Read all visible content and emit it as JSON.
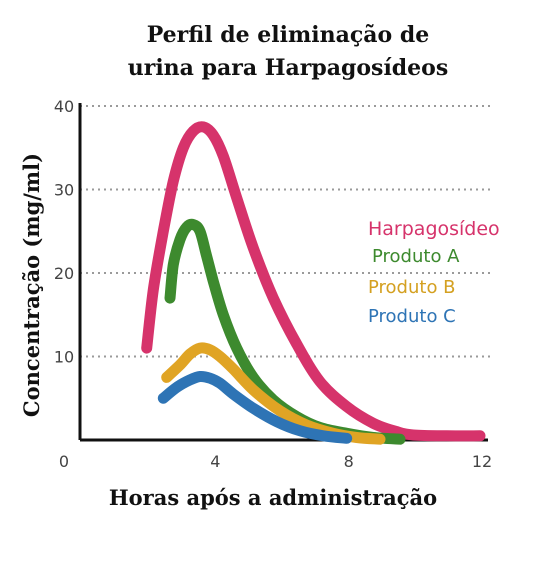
{
  "chart_data": {
    "type": "line",
    "title_lines": [
      "Perfil de eliminação de",
      "urina para Harpagosídeos"
    ],
    "xlabel": "Horas após a administração",
    "ylabel": "Concentração (mg/ml)",
    "xlim": [
      0,
      12
    ],
    "ylim": [
      0,
      40
    ],
    "x_ticks": [
      0,
      4,
      8,
      12
    ],
    "y_ticks": [
      0,
      10,
      20,
      30,
      40
    ],
    "x_tick_labels": [
      "0",
      "4",
      "8",
      "12"
    ],
    "y_tick_labels": [
      "10",
      "20",
      "30",
      "40"
    ],
    "grid": "horizontal dotted",
    "legend_position": "right",
    "series": [
      {
        "name": "Harpagosídeo",
        "color": "#d6336b",
        "x": [
          2.0,
          2.2,
          2.5,
          2.8,
          3.1,
          3.4,
          3.7,
          4.0,
          4.3,
          4.7,
          5.2,
          5.8,
          6.5,
          7.2,
          8.0,
          8.8,
          9.5,
          10.0,
          11.0,
          12.0
        ],
        "y": [
          11,
          18,
          25,
          31,
          35,
          37,
          37.5,
          36.5,
          34,
          29,
          23,
          17,
          11.5,
          7,
          4,
          2,
          1,
          0.6,
          0.5,
          0.5
        ]
      },
      {
        "name": "Produto A",
        "color": "#3d8a2e",
        "x": [
          2.7,
          2.8,
          3.0,
          3.2,
          3.4,
          3.6,
          3.8,
          4.0,
          4.3,
          4.7,
          5.2,
          5.8,
          6.5,
          7.2,
          8.0,
          8.8,
          9.6
        ],
        "y": [
          17,
          21,
          24,
          25.5,
          25.8,
          25,
          22,
          19,
          15,
          11,
          7.5,
          4.8,
          2.8,
          1.5,
          0.8,
          0.3,
          0.1
        ]
      },
      {
        "name": "Produto B",
        "color": "#e0a424",
        "x": [
          2.6,
          3.0,
          3.3,
          3.6,
          3.9,
          4.2,
          4.6,
          5.2,
          6.0,
          6.8,
          7.6,
          8.3,
          9.0
        ],
        "y": [
          7.5,
          9,
          10.3,
          11,
          10.8,
          10,
          8.5,
          6,
          3.5,
          1.8,
          0.8,
          0.3,
          0.1
        ]
      },
      {
        "name": "Produto C",
        "color": "#2e74b5",
        "x": [
          2.5,
          2.9,
          3.3,
          3.6,
          3.9,
          4.2,
          4.6,
          5.2,
          5.9,
          6.6,
          7.3,
          8.0
        ],
        "y": [
          5,
          6.3,
          7.2,
          7.6,
          7.4,
          6.8,
          5.5,
          3.8,
          2.2,
          1.1,
          0.5,
          0.2
        ]
      }
    ]
  }
}
